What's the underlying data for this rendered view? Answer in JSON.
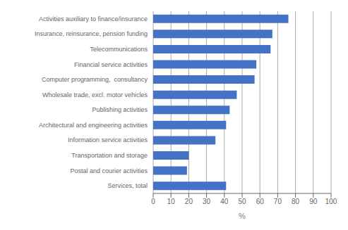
{
  "chart_data": {
    "type": "bar",
    "orientation": "horizontal",
    "categories": [
      "Services, total",
      "Postal and courier activities",
      "Transportation and storage",
      "Information service activities",
      "Architectural and engineering activities",
      "Publishing activities",
      "Wholesale trade, excl. motor vehicles",
      "Computer programming,  consultancy",
      "Financial service activities",
      "Telecommunications",
      "Insurance, reinsurance, pension funding",
      "Activities auxiliary to finance/insurance"
    ],
    "values": [
      41,
      19,
      20,
      35,
      41,
      43,
      47,
      57,
      58,
      66,
      67,
      76
    ],
    "color": "#4472C4",
    "xlabel": "%",
    "xlim": [
      0,
      100
    ],
    "xticks": [
      0,
      10,
      20,
      30,
      40,
      50,
      60,
      70,
      80,
      90,
      100
    ],
    "grid": true
  }
}
